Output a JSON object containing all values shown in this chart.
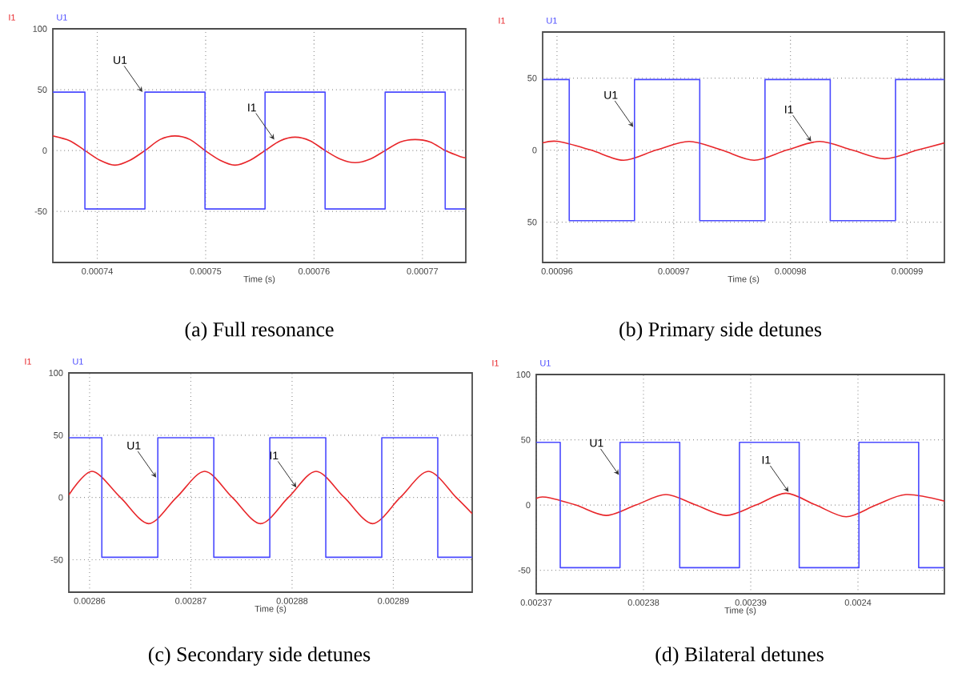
{
  "chart_data": [
    {
      "type": "line",
      "title": "(a) Full resonance",
      "xlabel": "Time (s)",
      "legend": "top left",
      "grid": true,
      "xlim": [
        0.0007359,
        0.000774
      ],
      "ylim": [
        -92,
        100
      ],
      "xticks": [
        0.00074,
        0.00075,
        0.00076,
        0.00077
      ],
      "yticks": [
        -50,
        0,
        50,
        100
      ],
      "series": [
        {
          "name": "I1",
          "color": "#e8262a",
          "x": [
            0.0007359,
            0.00073748,
            0.00073886,
            0.00074025,
            0.00074163,
            0.00074302,
            0.0007444,
            0.00074579,
            0.00074717,
            0.00074856,
            0.00074994,
            0.00075133,
            0.00075271,
            0.0007541,
            0.00075548,
            0.00075687,
            0.00075825,
            0.00075964,
            0.00076102,
            0.00076241,
            0.00076379,
            0.00076518,
            0.00076656,
            0.00076795,
            0.00076933,
            0.00077072,
            0.0007721,
            0.00077349,
            0.000774
          ],
          "values": [
            12,
            8,
            0,
            -8,
            -12,
            -8,
            0,
            9,
            12,
            9,
            0,
            -8,
            -12,
            -8,
            0,
            8,
            11,
            8,
            0,
            -7,
            -10,
            -7,
            0,
            7,
            9,
            7,
            0,
            -5,
            -6
          ]
        },
        {
          "name": "U1",
          "type": "step",
          "color": "#4a4aff",
          "x": [
            0.0007359,
            0.00073886,
            0.0007444,
            0.00074994,
            0.00075548,
            0.00076102,
            0.00076656,
            0.0007721,
            0.000774
          ],
          "values": [
            48,
            -48,
            48,
            -48,
            48,
            -48,
            48,
            -48,
            -48
          ]
        }
      ],
      "annotations": [
        {
          "text": "U1",
          "x": 0.00074417,
          "y": 48
        },
        {
          "text": "I1",
          "x": 0.00075633,
          "y": 9
        }
      ]
    },
    {
      "type": "line",
      "title": "(b) Primary side detunes",
      "xlabel": "Time (s)",
      "legend": "top left",
      "grid": true,
      "xlim": [
        0.00095877,
        0.00099319
      ],
      "ylim": [
        -78,
        82
      ],
      "xticks": [
        0.00096,
        0.00097,
        0.00098,
        0.00099
      ],
      "yticks": [
        {
          "value": -50,
          "label": "50"
        },
        0,
        50
      ],
      "series": [
        {
          "name": "I1",
          "color": "#e8262a",
          "x": [
            0.00095877,
            0.00096014,
            0.00096292,
            0.00096571,
            0.00096849,
            0.00097132,
            0.00097411,
            0.00097689,
            0.00097968,
            0.00098251,
            0.0009853,
            0.00098808,
            0.00099087,
            0.00099319
          ],
          "values": [
            5,
            6,
            0,
            -7,
            0,
            6,
            0,
            -7,
            0,
            6,
            0,
            -6,
            0,
            5
          ]
        },
        {
          "name": "U1",
          "type": "step",
          "color": "#4a4aff",
          "x": [
            0.00095877,
            0.00096105,
            0.00096664,
            0.00097223,
            0.00097782,
            0.00098341,
            0.000989,
            0.00099319
          ],
          "values": [
            49,
            -49,
            49,
            -49,
            49,
            -49,
            49,
            49
          ]
        }
      ],
      "annotations": [
        {
          "text": "U1",
          "x": 0.00096653,
          "y": 16
        },
        {
          "text": "I1",
          "x": 0.00098178,
          "y": 6
        }
      ]
    },
    {
      "type": "line",
      "title": "(c) Secondary side detunes",
      "xlabel": "Time (s)",
      "legend": "top left",
      "grid": true,
      "xlim": [
        0.00285795,
        0.00289779
      ],
      "ylim": [
        -76,
        100
      ],
      "xticks": [
        0.00286,
        0.00287,
        0.00288,
        0.00289
      ],
      "yticks": [
        -50,
        0,
        50,
        100
      ],
      "series": [
        {
          "name": "I1",
          "color": "#e8262a",
          "x": [
            0.00285795,
            0.00286026,
            0.00286305,
            0.00286584,
            0.00286858,
            0.00287137,
            0.0028741,
            0.00287689,
            0.00287963,
            0.00288237,
            0.00288516,
            0.00288795,
            0.00289068,
            0.00289347,
            0.00289621,
            0.00289779
          ],
          "values": [
            2,
            21,
            0,
            -21,
            0,
            21,
            0,
            -21,
            0,
            21,
            0,
            -21,
            0,
            21,
            0,
            -13
          ]
        },
        {
          "name": "U1",
          "type": "step",
          "color": "#4a4aff",
          "x": [
            0.00285795,
            0.00286121,
            0.00286674,
            0.00287227,
            0.0028778,
            0.00288333,
            0.00288886,
            0.00289439,
            0.00289779
          ],
          "values": [
            48,
            -48,
            48,
            -48,
            48,
            -48,
            48,
            -48,
            -48
          ]
        }
      ],
      "annotations": [
        {
          "text": "U1",
          "x": 0.00286658,
          "y": 16
        },
        {
          "text": "I1",
          "x": 0.00288042,
          "y": 8
        }
      ]
    },
    {
      "type": "line",
      "title": "(d) Bilateral detunes",
      "xlabel": "Time (s)",
      "legend": "top left",
      "grid": true,
      "xlim": [
        0.00237,
        0.00240806
      ],
      "ylim": [
        -68,
        100
      ],
      "xticks": [
        0.00237,
        0.00238,
        0.00239,
        0.0024
      ],
      "yticks": [
        -50,
        0,
        50,
        100
      ],
      "series": [
        {
          "name": "I1",
          "color": "#e8262a",
          "x": [
            0.00237,
            0.0023709,
            0.00237368,
            0.00237652,
            0.0023793,
            0.00238209,
            0.00238488,
            0.00238771,
            0.0023905,
            0.00239328,
            0.00239607,
            0.0023989,
            0.00240169,
            0.00240448,
            0.00240806
          ],
          "values": [
            5,
            6,
            0,
            -8,
            0,
            8,
            0,
            -8,
            0,
            9,
            0,
            -9,
            0,
            8,
            3
          ]
        },
        {
          "name": "U1",
          "type": "step",
          "color": "#4a4aff",
          "x": [
            0.00237,
            0.00237224,
            0.00237781,
            0.00238338,
            0.00238895,
            0.00239452,
            0.00240009,
            0.00240566,
            0.00240806
          ],
          "values": [
            48,
            -48,
            48,
            -48,
            48,
            -48,
            48,
            -48,
            -48
          ]
        }
      ],
      "annotations": [
        {
          "text": "U1",
          "x": 0.00237771,
          "y": 23
        },
        {
          "text": "I1",
          "x": 0.00239353,
          "y": 10
        }
      ]
    }
  ]
}
